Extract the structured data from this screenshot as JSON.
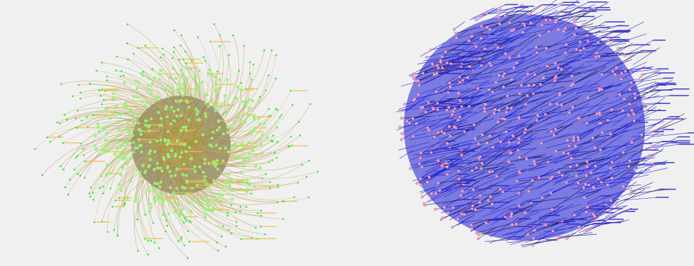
{
  "image": {
    "background": "#f0f0f0",
    "panels": [
      {
        "name": "left-network",
        "edge_color": "#a88f3a",
        "edge_color_alt": "#c9b36a",
        "node_color": "#2ee82e",
        "node_glow": "#9af07a",
        "core_color": "#3b2e05",
        "label_color": "#e8c24a"
      },
      {
        "name": "right-network",
        "edge_color": "#1c1cd6",
        "edge_color_dark": "#0b0b4a",
        "node_color": "#f3a8c8",
        "node_outline": "#b04a7a",
        "label_color": "#2a2ac8",
        "tip_color": "#d01a1a"
      }
    ]
  }
}
